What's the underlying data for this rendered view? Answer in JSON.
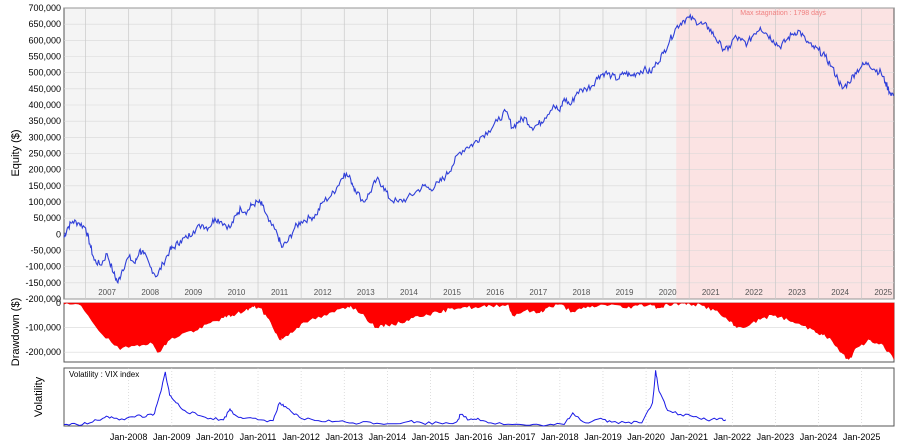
{
  "chart_data": [
    {
      "type": "line",
      "ylabel": "Equity ($)",
      "ylim": [
        -200000,
        700000
      ],
      "yticks": [
        "700,000",
        "650,000",
        "600,000",
        "550,000",
        "500,000",
        "450,000",
        "400,000",
        "350,000",
        "300,000",
        "250,000",
        "200,000",
        "150,000",
        "100,000",
        "50,000",
        "0",
        "-50,000",
        "-100,000",
        "-150,000",
        "-200,000"
      ],
      "xlim": [
        2006.5,
        2025.75
      ],
      "year_labels": [
        "2007",
        "2008",
        "2009",
        "2010",
        "2011",
        "2012",
        "2013",
        "2014",
        "2015",
        "2016",
        "2017",
        "2018",
        "2019",
        "2020",
        "2021",
        "2022",
        "2023",
        "2024",
        "2025"
      ],
      "grid": true,
      "shaded_region": {
        "x": [
          2020.7,
          2025.75
        ],
        "label": "Max stagnation : 1798 days"
      },
      "series": [
        {
          "color": "#2f3fd8",
          "x": [
            2006.5,
            2006.58,
            2006.7,
            2006.85,
            2007.0,
            2007.1,
            2007.2,
            2007.35,
            2007.5,
            2007.65,
            2007.75,
            2007.85,
            2008.0,
            2008.15,
            2008.25,
            2008.35,
            2008.5,
            2008.65,
            2008.8,
            2008.95,
            2009.05,
            2009.2,
            2009.35,
            2009.5,
            2009.7,
            2009.85,
            2010.0,
            2010.15,
            2010.35,
            2010.5,
            2010.6,
            2010.75,
            2010.85,
            2011.0,
            2011.1,
            2011.25,
            2011.45,
            2011.55,
            2011.7,
            2011.85,
            2012.0,
            2012.2,
            2012.35,
            2012.5,
            2012.7,
            2012.85,
            2013.0,
            2013.15,
            2013.25,
            2013.45,
            2013.6,
            2013.75,
            2013.9,
            2014.05,
            2014.25,
            2014.45,
            2014.65,
            2014.85,
            2015.0,
            2015.2,
            2015.35,
            2015.5,
            2015.65,
            2015.85,
            2016.0,
            2016.15,
            2016.35,
            2016.55,
            2016.75,
            2016.9,
            2017.05,
            2017.2,
            2017.35,
            2017.5,
            2017.65,
            2017.85,
            2018.0,
            2018.1,
            2018.25,
            2018.4,
            2018.6,
            2018.75,
            2018.9,
            2019.05,
            2019.2,
            2019.35,
            2019.5,
            2019.65,
            2019.8,
            2019.95,
            2020.1,
            2020.25,
            2020.4,
            2020.55,
            2020.7,
            2020.85,
            2021.0,
            2021.15,
            2021.3,
            2021.45,
            2021.6,
            2021.75,
            2021.9,
            2022.05,
            2022.2,
            2022.35,
            2022.5,
            2022.65,
            2022.8,
            2022.95,
            2023.1,
            2023.25,
            2023.4,
            2023.55,
            2023.7,
            2023.85,
            2024.0,
            2024.15,
            2024.3,
            2024.45,
            2024.55,
            2024.7,
            2024.85,
            2025.0,
            2025.15,
            2025.3,
            2025.45,
            2025.55,
            2025.65,
            2025.75
          ],
          "values": [
            -10000,
            20000,
            40000,
            35000,
            20000,
            -30000,
            -80000,
            -95000,
            -60000,
            -120000,
            -150000,
            -110000,
            -70000,
            -90000,
            -50000,
            -60000,
            -100000,
            -130000,
            -90000,
            -50000,
            -40000,
            -20000,
            -10000,
            10000,
            30000,
            20000,
            50000,
            40000,
            20000,
            60000,
            80000,
            70000,
            90000,
            100000,
            90000,
            40000,
            0,
            -40000,
            -20000,
            20000,
            40000,
            50000,
            60000,
            100000,
            120000,
            150000,
            190000,
            170000,
            140000,
            100000,
            130000,
            170000,
            150000,
            110000,
            100000,
            110000,
            130000,
            150000,
            140000,
            160000,
            180000,
            210000,
            250000,
            270000,
            280000,
            300000,
            320000,
            350000,
            380000,
            330000,
            350000,
            360000,
            330000,
            340000,
            360000,
            400000,
            380000,
            420000,
            400000,
            440000,
            450000,
            460000,
            490000,
            500000,
            490000,
            480000,
            500000,
            490000,
            500000,
            510000,
            500000,
            530000,
            560000,
            600000,
            640000,
            660000,
            670000,
            660000,
            650000,
            640000,
            610000,
            580000,
            570000,
            610000,
            600000,
            590000,
            620000,
            640000,
            620000,
            600000,
            580000,
            600000,
            620000,
            630000,
            600000,
            580000,
            570000,
            550000,
            520000,
            480000,
            450000,
            470000,
            500000,
            520000,
            530000,
            510000,
            500000,
            470000,
            440000,
            430000
          ]
        }
      ]
    },
    {
      "type": "area",
      "ylabel": "Drawdown ($)",
      "ylim": [
        -240000,
        0
      ],
      "yticks": [
        "0",
        "-100,000",
        "-200,000"
      ],
      "color": "#ff0000",
      "x": [
        2006.5,
        2006.9,
        2007.4,
        2007.8,
        2008.2,
        2008.5,
        2008.7,
        2008.95,
        2009.3,
        2009.6,
        2009.9,
        2010.2,
        2010.4,
        2010.7,
        2010.9,
        2011.05,
        2011.3,
        2011.5,
        2011.6,
        2011.9,
        2012.2,
        2012.6,
        2012.95,
        2013.15,
        2013.5,
        2013.75,
        2014.0,
        2014.3,
        2014.6,
        2014.9,
        2015.2,
        2015.5,
        2015.8,
        2016.1,
        2016.4,
        2016.8,
        2016.9,
        2017.2,
        2017.5,
        2017.7,
        2018.0,
        2018.3,
        2018.6,
        2018.9,
        2019.2,
        2019.5,
        2019.8,
        2020.1,
        2020.3,
        2020.5,
        2020.8,
        2021.0,
        2021.3,
        2021.6,
        2021.9,
        2022.1,
        2022.4,
        2022.7,
        2023.0,
        2023.3,
        2023.6,
        2023.9,
        2024.1,
        2024.3,
        2024.5,
        2024.7,
        2024.9,
        2025.2,
        2025.5,
        2025.75
      ],
      "values": [
        -5000,
        -10000,
        -130000,
        -190000,
        -170000,
        -160000,
        -200000,
        -150000,
        -120000,
        -110000,
        -80000,
        -60000,
        -50000,
        -30000,
        -15000,
        -20000,
        -80000,
        -150000,
        -140000,
        -100000,
        -70000,
        -50000,
        -20000,
        -10000,
        -60000,
        -100000,
        -90000,
        -80000,
        -60000,
        -45000,
        -40000,
        -20000,
        -15000,
        -20000,
        -10000,
        -5000,
        -50000,
        -30000,
        -40000,
        -20000,
        -5000,
        -35000,
        -20000,
        -10000,
        -5000,
        -20000,
        -10000,
        -5000,
        -20000,
        -5000,
        -2000,
        -2000,
        -10000,
        -30000,
        -70000,
        -100000,
        -90000,
        -60000,
        -50000,
        -70000,
        -90000,
        -110000,
        -130000,
        -150000,
        -200000,
        -230000,
        -180000,
        -150000,
        -170000,
        -230000
      ]
    },
    {
      "type": "line",
      "ylabel": "Volatility",
      "title": "Volatility : VIX index",
      "ylim": [
        10,
        85
      ],
      "color": "#1a1ae6",
      "x_tick_labels": [
        "Jan-2008",
        "Jan-2009",
        "Jan-2010",
        "Jan-2011",
        "Jan-2012",
        "Jan-2013",
        "Jan-2014",
        "Jan-2015",
        "Jan-2016",
        "Jan-2017",
        "Jan-2018",
        "Jan-2019",
        "Jan-2020",
        "Jan-2021",
        "Jan-2022",
        "Jan-2023",
        "Jan-2024",
        "Jan-2025"
      ],
      "x": [
        2006.5,
        2006.8,
        2007.1,
        2007.4,
        2007.6,
        2007.9,
        2008.2,
        2008.4,
        2008.6,
        2008.75,
        2008.85,
        2008.95,
        2009.1,
        2009.3,
        2009.6,
        2009.9,
        2010.2,
        2010.35,
        2010.45,
        2010.7,
        2011.0,
        2011.35,
        2011.5,
        2011.6,
        2011.8,
        2012.0,
        2012.4,
        2012.8,
        2013.2,
        2013.6,
        2014.0,
        2014.5,
        2014.8,
        2015.2,
        2015.6,
        2015.7,
        2015.9,
        2016.1,
        2016.4,
        2016.9,
        2017.3,
        2017.7,
        2018.1,
        2018.3,
        2018.6,
        2018.95,
        2019.2,
        2019.6,
        2019.9,
        2020.15,
        2020.22,
        2020.3,
        2020.5,
        2020.8,
        2021.1,
        2021.4,
        2021.7,
        2021.85
      ],
      "values": [
        12,
        12,
        14,
        20,
        22,
        18,
        24,
        22,
        26,
        55,
        80,
        50,
        40,
        30,
        24,
        20,
        18,
        32,
        25,
        20,
        18,
        17,
        40,
        35,
        27,
        20,
        17,
        16,
        14,
        15,
        13,
        16,
        14,
        14,
        15,
        25,
        18,
        20,
        14,
        12,
        11,
        11,
        12,
        27,
        14,
        20,
        15,
        15,
        14,
        40,
        82,
        55,
        30,
        25,
        22,
        18,
        20,
        18
      ]
    }
  ]
}
